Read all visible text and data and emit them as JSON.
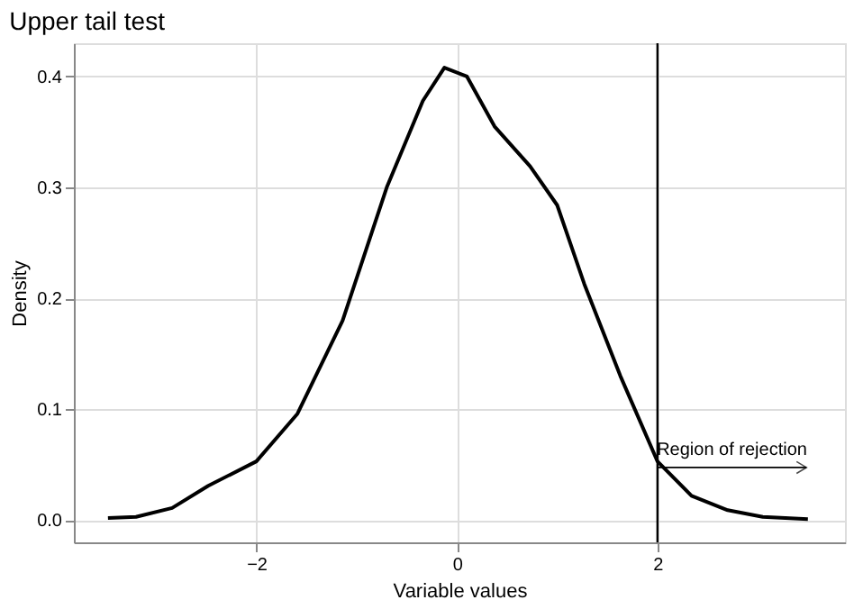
{
  "chart_data": {
    "type": "line",
    "title": "Upper tail test",
    "xlabel": "Variable values",
    "ylabel": "Density",
    "x": [
      -3.48,
      -3.2,
      -2.84,
      -2.48,
      -2.0,
      -1.59,
      -1.14,
      -0.7,
      -0.34,
      -0.125,
      0.1,
      0.375,
      0.73,
      1.0,
      1.27,
      1.63,
      2.0,
      2.34,
      2.7,
      3.05,
      3.5
    ],
    "series": [
      {
        "color": "#000000",
        "values": [
          0.002,
          0.003,
          0.011,
          0.031,
          0.053,
          0.096,
          0.18,
          0.3,
          0.378,
          0.408,
          0.4,
          0.355,
          0.319,
          0.284,
          0.213,
          0.13,
          0.053,
          0.022,
          0.009,
          0.003,
          0.001
        ]
      }
    ],
    "xlim": [
      -3.82,
      3.87
    ],
    "ylim": [
      -0.02,
      0.43
    ],
    "xticks": [
      -2,
      0,
      2
    ],
    "yticks": [
      {
        "value": 0,
        "label": "0.0"
      },
      {
        "value": 0.1,
        "label": "0.1"
      },
      {
        "value": 0.2,
        "label": "0.2"
      },
      {
        "value": 0.3,
        "label": "0.3"
      },
      {
        "value": 0.4,
        "label": "0.4"
      }
    ],
    "grid": true,
    "marker": "none",
    "line_style": "solid",
    "ref_lines": [
      {
        "axis": "x",
        "value": 2,
        "color": "#000000"
      }
    ],
    "annotations": [
      "Region of rejection"
    ]
  }
}
